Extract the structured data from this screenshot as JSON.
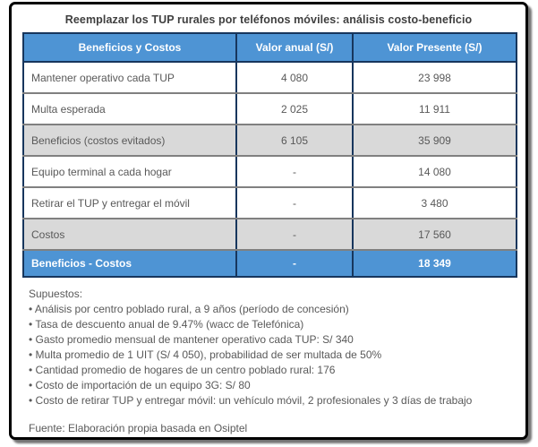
{
  "title": "Reemplazar los TUP rurales por teléfonos móviles: análisis costo-beneficio",
  "colors": {
    "header_blue": "#4e94d4",
    "row_gray": "#d9d9d9",
    "body_text": "#595959",
    "frame_border": "#000000",
    "vertical_border": "#17365d",
    "horizontal_border": "#808080"
  },
  "table": {
    "headers": [
      "Beneficios y Costos",
      "Valor anual (S/)",
      "Valor Presente (S/)"
    ],
    "rows": [
      {
        "label": "Mantener operativo cada TUP",
        "annual": "4 080",
        "present": "23 998",
        "style": "white"
      },
      {
        "label": "Multa esperada",
        "annual": "2 025",
        "present": "11 911",
        "style": "white"
      },
      {
        "label": "Beneficios (costos evitados)",
        "annual": "6 105",
        "present": "35 909",
        "style": "gray"
      },
      {
        "label": "Equipo terminal a cada hogar",
        "annual": "-",
        "present": "14 080",
        "style": "white"
      },
      {
        "label": "Retirar el TUP y entregar el móvil",
        "annual": "-",
        "present": "3 480",
        "style": "white"
      },
      {
        "label": "Costos",
        "annual": "-",
        "present": "17 560",
        "style": "gray"
      },
      {
        "label": "Beneficios - Costos",
        "annual": "-",
        "present": "18 349",
        "style": "total"
      }
    ]
  },
  "notes": {
    "heading": "Supuestos:",
    "bullets": [
      "• Análisis por centro poblado rural, a 9 años (período de concesión)",
      "• Tasa de descuento anual de 9.47% (wacc de Telefónica)",
      "• Gasto promedio mensual de mantener operativo cada TUP: S/ 340",
      "• Multa promedio de 1 UIT (S/ 4 050), probabilidad de ser multada de 50%",
      "• Cantidad promedio de hogares de un centro poblado rural: 176",
      "• Costo de importación de un equipo 3G: S/ 80",
      "• Costo de retirar TUP y entregar móvil: un vehículo móvil, 2 profesionales y 3 días de trabajo"
    ],
    "source": "Fuente: Elaboración propia basada en Osiptel"
  },
  "chart_data": {
    "type": "table",
    "title": "Reemplazar los TUP rurales por teléfonos móviles: análisis costo-beneficio",
    "columns": [
      "Beneficios y Costos",
      "Valor anual (S/)",
      "Valor Presente (S/)"
    ],
    "rows": [
      [
        "Mantener operativo cada TUP",
        4080,
        23998
      ],
      [
        "Multa esperada",
        2025,
        11911
      ],
      [
        "Beneficios (costos evitados)",
        6105,
        35909
      ],
      [
        "Equipo terminal a cada hogar",
        null,
        14080
      ],
      [
        "Retirar el TUP y entregar el móvil",
        null,
        3480
      ],
      [
        "Costos",
        null,
        17560
      ],
      [
        "Beneficios - Costos",
        null,
        18349
      ]
    ],
    "source": "Fuente: Elaboración propia basada en Osiptel"
  }
}
